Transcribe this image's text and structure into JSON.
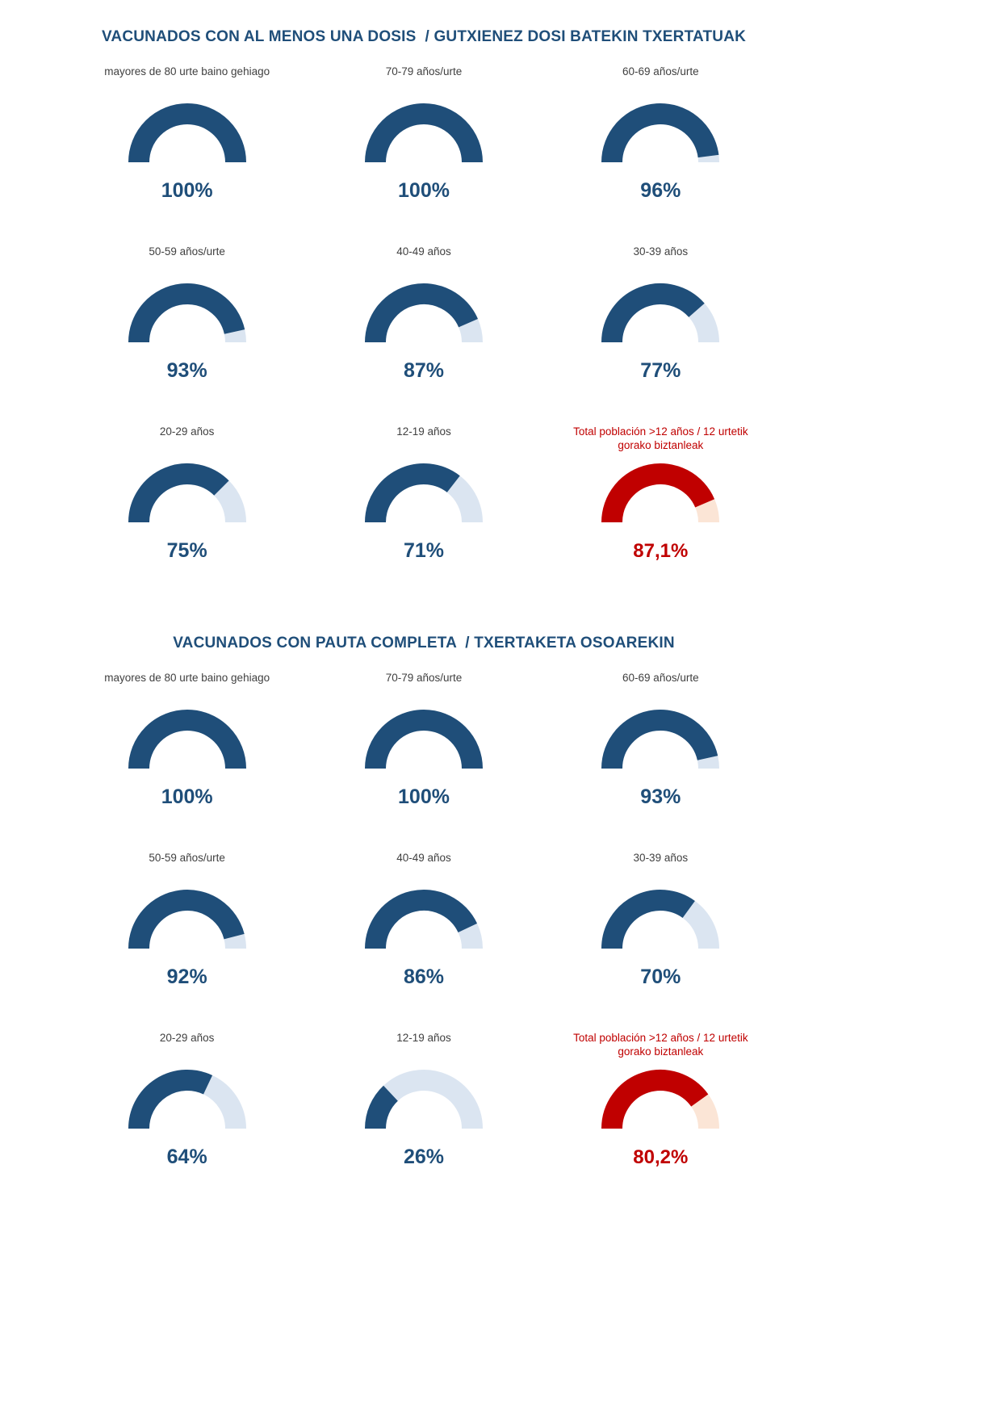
{
  "colors": {
    "fill_blue": "#1f4e79",
    "track_blue": "#dbe5f1",
    "fill_red": "#c00000",
    "track_red": "#fbe5d6",
    "title_blue": "#1f4e79",
    "label_gray": "#404040"
  },
  "chart_data": [
    {
      "type": "gauge",
      "title": "VACUNADOS CON AL MENOS UNA DOSIS  / GUTXIENEZ DOSI BATEKIN TXERTATUAK",
      "legend_position": "none",
      "value_range": [
        0,
        100
      ],
      "gauges": [
        {
          "label": "mayores de 80 urte baino gehiago",
          "value": 100,
          "display": "100%",
          "style": "blue"
        },
        {
          "label": "70-79 años/urte",
          "value": 100,
          "display": "100%",
          "style": "blue"
        },
        {
          "label": "60-69 años/urte",
          "value": 96,
          "display": "96%",
          "style": "blue"
        },
        {
          "label": "50-59 años/urte",
          "value": 93,
          "display": "93%",
          "style": "blue"
        },
        {
          "label": "40-49 años",
          "value": 87,
          "display": "87%",
          "style": "blue"
        },
        {
          "label": "30-39 años",
          "value": 77,
          "display": "77%",
          "style": "blue"
        },
        {
          "label": "20-29 años",
          "value": 75,
          "display": "75%",
          "style": "blue"
        },
        {
          "label": "12-19 años",
          "value": 71,
          "display": "71%",
          "style": "blue"
        },
        {
          "label": "Total población >12 años / 12 urtetik gorako biztanleak",
          "value": 87.1,
          "display": "87,1%",
          "style": "red"
        }
      ]
    },
    {
      "type": "gauge",
      "title": "VACUNADOS CON PAUTA COMPLETA  / TXERTAKETA OSOAREKIN",
      "legend_position": "none",
      "value_range": [
        0,
        100
      ],
      "gauges": [
        {
          "label": "mayores de 80 urte baino gehiago",
          "value": 100,
          "display": "100%",
          "style": "blue"
        },
        {
          "label": "70-79 años/urte",
          "value": 100,
          "display": "100%",
          "style": "blue"
        },
        {
          "label": "60-69 años/urte",
          "value": 93,
          "display": "93%",
          "style": "blue"
        },
        {
          "label": "50-59 años/urte",
          "value": 92,
          "display": "92%",
          "style": "blue"
        },
        {
          "label": "40-49 años",
          "value": 86,
          "display": "86%",
          "style": "blue"
        },
        {
          "label": "30-39 años",
          "value": 70,
          "display": "70%",
          "style": "blue"
        },
        {
          "label": "20-29 años",
          "value": 64,
          "display": "64%",
          "style": "blue"
        },
        {
          "label": "12-19 años",
          "value": 26,
          "display": "26%",
          "style": "blue"
        },
        {
          "label": "Total población >12 años / 12 urtetik gorako biztanleak",
          "value": 80.2,
          "display": "80,2%",
          "style": "red"
        }
      ]
    }
  ]
}
